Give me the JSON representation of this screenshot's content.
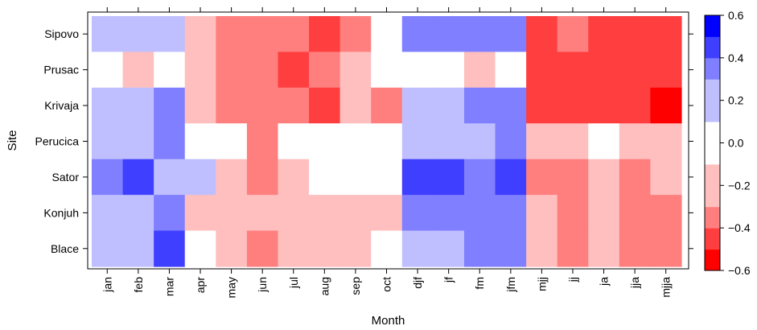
{
  "chart_data": {
    "type": "heatmap",
    "xlabel": "Month",
    "ylabel": "Site",
    "x_categories": [
      "jan",
      "feb",
      "mar",
      "apr",
      "may",
      "jun",
      "jul",
      "aug",
      "sep",
      "oct",
      "djf",
      "jf",
      "fm",
      "jfm",
      "mjj",
      "jj",
      "ja",
      "jja",
      "mjja"
    ],
    "y_categories": [
      "Sipovo",
      "Prusac",
      "Krivaja",
      "Perucica",
      "Sator",
      "Konjuh",
      "Blace"
    ],
    "values": [
      [
        0.1,
        0.1,
        0.1,
        -0.1,
        -0.3,
        -0.3,
        -0.3,
        -0.5,
        -0.3,
        0.0,
        0.3,
        0.3,
        0.3,
        0.3,
        -0.5,
        -0.3,
        -0.5,
        -0.5,
        -0.5
      ],
      [
        0.0,
        -0.1,
        0.0,
        -0.1,
        -0.3,
        -0.3,
        -0.5,
        -0.3,
        -0.1,
        0.0,
        0.0,
        0.0,
        -0.1,
        0.0,
        -0.5,
        -0.5,
        -0.5,
        -0.5,
        -0.5
      ],
      [
        0.1,
        0.1,
        0.3,
        -0.1,
        -0.3,
        -0.3,
        -0.3,
        -0.5,
        -0.1,
        -0.3,
        0.1,
        0.1,
        0.3,
        0.3,
        -0.5,
        -0.5,
        -0.5,
        -0.5,
        -0.7
      ],
      [
        0.1,
        0.1,
        0.3,
        0.0,
        0.0,
        -0.3,
        0.0,
        0.0,
        0.0,
        0.0,
        0.1,
        0.1,
        0.1,
        0.3,
        -0.1,
        -0.1,
        0.0,
        -0.1,
        -0.1
      ],
      [
        0.3,
        0.5,
        0.1,
        0.1,
        -0.1,
        -0.3,
        -0.1,
        0.0,
        0.0,
        0.0,
        0.5,
        0.5,
        0.3,
        0.5,
        -0.3,
        -0.3,
        -0.1,
        -0.3,
        -0.1
      ],
      [
        0.1,
        0.1,
        0.3,
        -0.1,
        -0.1,
        -0.1,
        -0.1,
        -0.1,
        -0.1,
        -0.1,
        0.3,
        0.3,
        0.3,
        0.3,
        -0.1,
        -0.3,
        -0.1,
        -0.3,
        -0.3
      ],
      [
        0.1,
        0.1,
        0.5,
        0.0,
        -0.1,
        -0.3,
        -0.1,
        -0.1,
        -0.1,
        0.0,
        0.1,
        0.1,
        0.3,
        0.3,
        -0.1,
        -0.3,
        -0.1,
        -0.3,
        -0.3
      ]
    ],
    "colorbar": {
      "breaks": [
        -0.6,
        -0.5,
        -0.4,
        -0.3,
        -0.2,
        -0.1,
        0.0,
        0.1,
        0.2,
        0.3,
        0.4,
        0.5,
        0.6
      ],
      "tick_labels": [
        "−0.6",
        "−0.4",
        "−0.2",
        "0.0",
        "0.2",
        "0.4",
        "0.6"
      ],
      "tick_values": [
        -0.6,
        -0.4,
        -0.2,
        0.0,
        0.2,
        0.4,
        0.6
      ],
      "colors": [
        "#ff0000",
        "#ff3f3f",
        "#ff7f7f",
        "#ffbfbf",
        "#ffffff",
        "#ffffff",
        "#bfbfff",
        "#7f7fff",
        "#3f3fff",
        "#0000ff"
      ]
    },
    "palette": {
      "-0.7": "#ff0000",
      "-0.5": "#ff3f3f",
      "-0.3": "#ff7f7f",
      "-0.1": "#ffbfbf",
      "0": "#ffffff",
      "0.1": "#bfbfff",
      "0.3": "#7f7fff",
      "0.5": "#3f3fff"
    },
    "grid": false,
    "legend_position": "right"
  }
}
